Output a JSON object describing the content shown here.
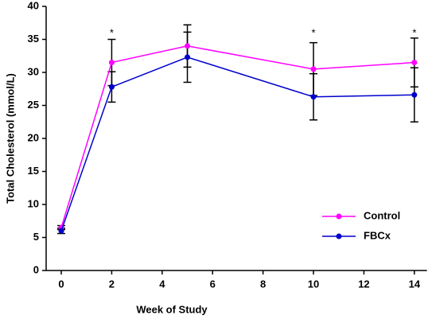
{
  "chart_data": {
    "type": "line",
    "x": [
      0,
      2,
      5,
      10,
      14
    ],
    "series": [
      {
        "name": "Control",
        "color": "#ff00ff",
        "values": [
          6.5,
          31.5,
          34,
          30.5,
          31.5
        ],
        "errors": [
          0.3,
          3.5,
          3.2,
          4,
          3.7
        ]
      },
      {
        "name": "FBCx",
        "color": "#0000cc",
        "values": [
          6,
          27.8,
          32.3,
          26.3,
          26.6
        ],
        "errors": [
          0.4,
          2.3,
          3.8,
          3.5,
          4.1
        ]
      }
    ],
    "xlabel": "Week of Study",
    "ylabel": "Total Cholesterol (mmol/L)",
    "xlim": [
      -0.6,
      14.5
    ],
    "xticks": [
      0,
      2,
      4,
      6,
      8,
      10,
      12,
      14
    ],
    "ylim": [
      0,
      40
    ],
    "yticks": [
      0,
      5,
      10,
      15,
      20,
      25,
      30,
      35,
      40
    ],
    "annotations": [
      {
        "x": 2,
        "text": "*"
      },
      {
        "x": 10,
        "text": "*"
      },
      {
        "x": 14,
        "text": "*"
      }
    ],
    "legend": "lower right",
    "grid": false
  }
}
